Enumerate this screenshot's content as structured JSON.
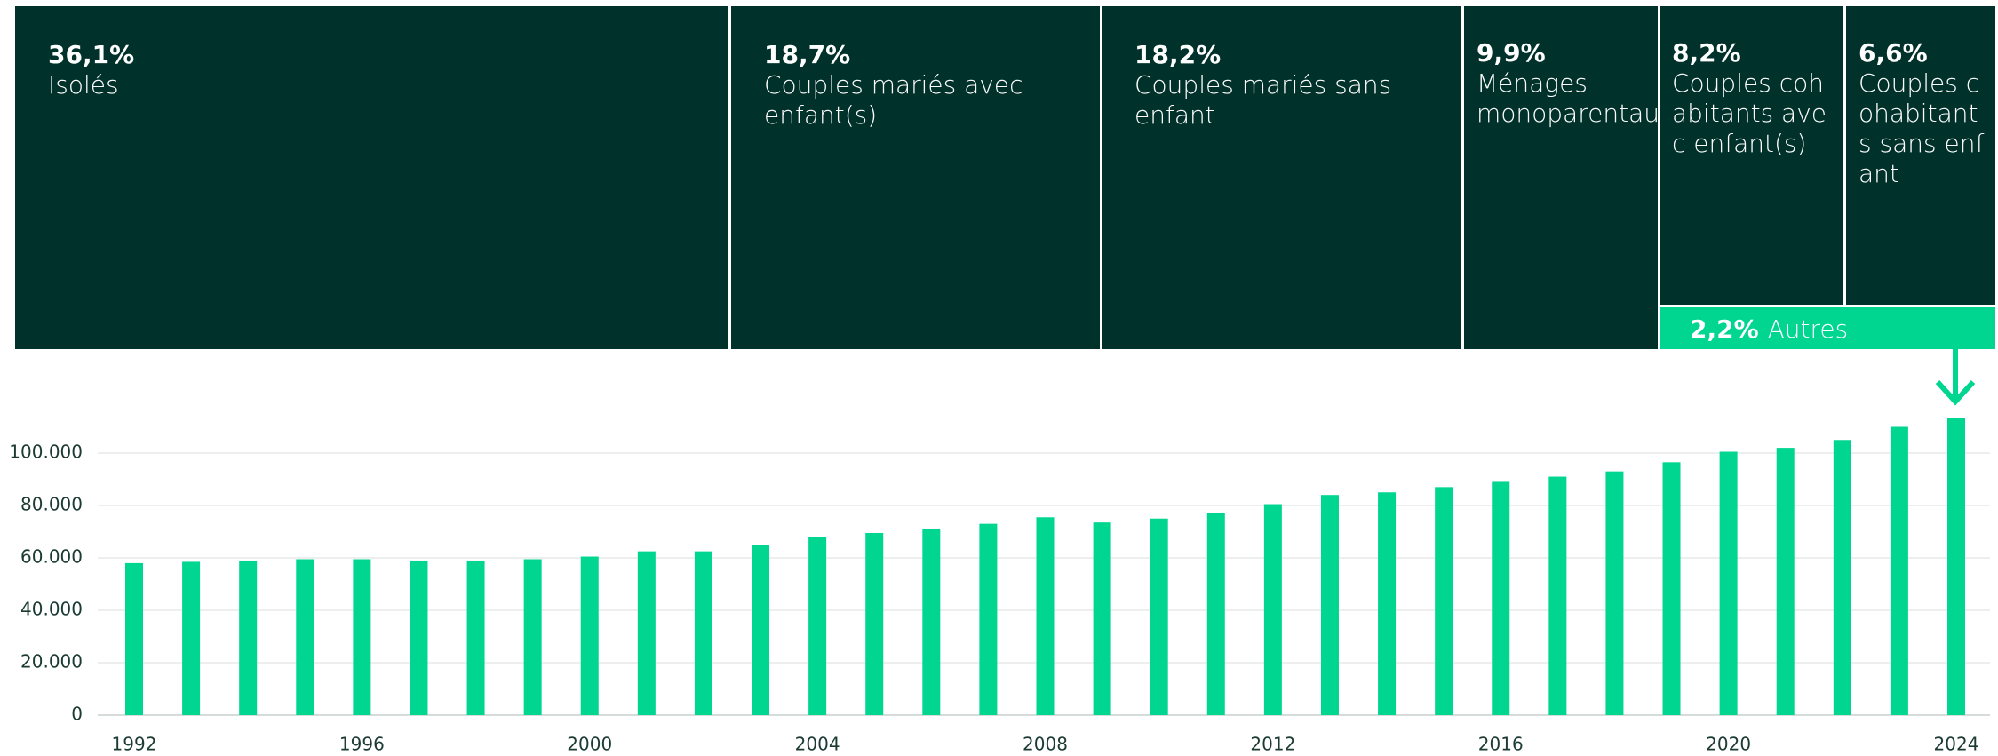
{
  "chart_data": [
    {
      "type": "treemap",
      "categories": [
        "Isolés",
        "Couples mariés avec enfant(s)",
        "Couples mariés sans enfant",
        "Ménages monoparentaux",
        "Couples cohabitants avec enfant(s)",
        "Couples cohabitants sans enfant",
        "Autres"
      ],
      "values": [
        36.1,
        18.7,
        18.2,
        9.9,
        8.2,
        6.6,
        2.2
      ],
      "value_labels": [
        "36,1%",
        "18,7%",
        "18,2%",
        "9,9%",
        "8,2%",
        "6,6%",
        "2,2%"
      ],
      "colors": [
        "#00312a",
        "#00312a",
        "#00312a",
        "#00312a",
        "#00312a",
        "#00312a",
        "#00d68f"
      ]
    },
    {
      "type": "bar",
      "categories": [
        "1992",
        null,
        null,
        null,
        "1996",
        null,
        null,
        null,
        "2000",
        null,
        null,
        null,
        "2004",
        null,
        null,
        null,
        "2008",
        null,
        null,
        null,
        "2012",
        null,
        null,
        null,
        "2016",
        null,
        null,
        null,
        "2020",
        null,
        null,
        null,
        "2024"
      ],
      "values": [
        58000,
        58500,
        59000,
        59500,
        59500,
        59000,
        59000,
        59500,
        60500,
        62500,
        62500,
        65000,
        68000,
        69500,
        71000,
        73000,
        75500,
        73500,
        75000,
        77000,
        80500,
        84000,
        85000,
        87000,
        89000,
        91000,
        93000,
        96500,
        100500,
        102000,
        105000,
        110000,
        113500
      ],
      "color": "#00d68f",
      "ylim": [
        0,
        115000
      ],
      "yticks": [
        0,
        {
          "value": 20000,
          "label": "20.000"
        },
        {
          "value": 40000,
          "label": "40.000"
        },
        {
          "value": 60000,
          "label": "60.000"
        },
        {
          "value": 80000,
          "label": "80.000"
        },
        {
          "value": 100000,
          "label": "100.000"
        }
      ],
      "grid": true
    }
  ]
}
